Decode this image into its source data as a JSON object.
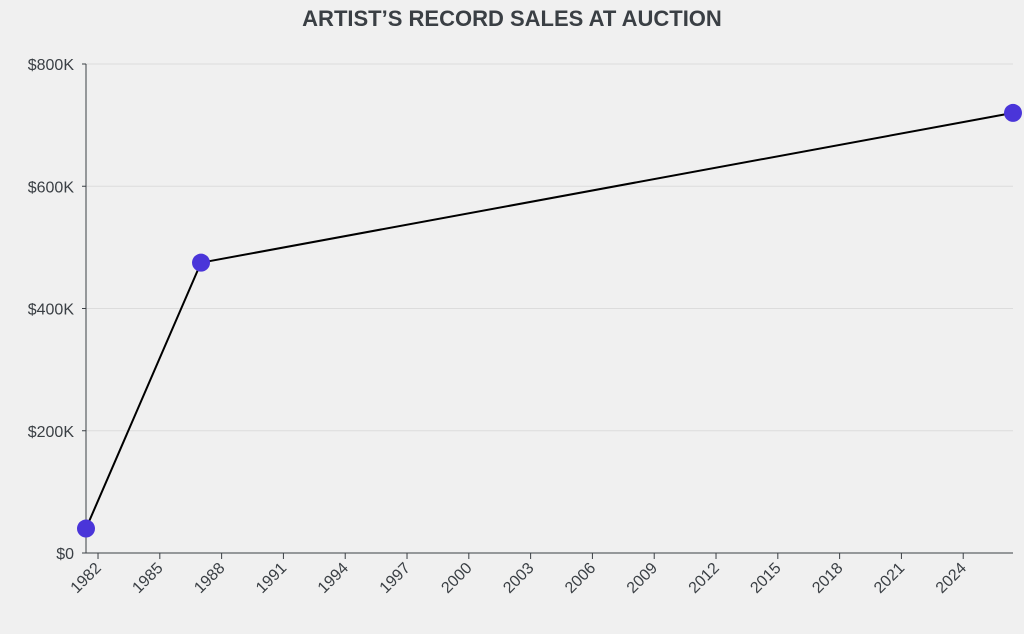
{
  "chart_data": {
    "type": "line",
    "title": "ARTIST’S RECORD SALES AT AUCTION",
    "xlabel": "",
    "ylabel": "",
    "x": [
      "1981-06",
      "1987-01",
      "2026-06"
    ],
    "series": [
      {
        "values": [
          40000,
          475000,
          720000
        ]
      }
    ],
    "xlim": [
      "1981-06",
      "2026-06"
    ],
    "ylim": [
      0,
      800000
    ],
    "x_ticks": [
      "1982",
      "1985",
      "1988",
      "1991",
      "1994",
      "1997",
      "2000",
      "2003",
      "2006",
      "2009",
      "2012",
      "2015",
      "2018",
      "2021",
      "2024"
    ],
    "y_ticks": [
      {
        "value": 0,
        "label": "$0"
      },
      {
        "value": 200000,
        "label": "$200K"
      },
      {
        "value": 400000,
        "label": "$400K"
      },
      {
        "value": 600000,
        "label": "$600K"
      },
      {
        "value": 800000,
        "label": "$800K"
      }
    ],
    "grid": true,
    "legend": "none",
    "colors": {
      "line": "#000000",
      "marker": "#4a35d9",
      "text": "#3a3f44",
      "grid": "#dcdcdc",
      "background": "#f0f0f0"
    }
  }
}
